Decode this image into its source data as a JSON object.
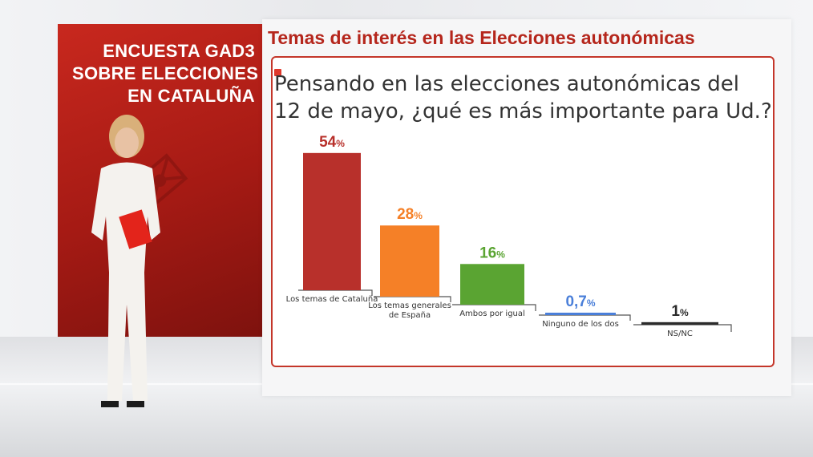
{
  "headline": {
    "lines": [
      "ENCUESTA GAD3",
      "SOBRE ELECCIONES",
      "EN CATALUÑA"
    ]
  },
  "screen": {
    "title": "Temas de interés en las Elecciones autonómicas",
    "question_lines": [
      "Pensando en las elecciones autonómicas del",
      "12 de mayo, ¿qué es más importante para Ud.?"
    ]
  },
  "colors": {
    "accent_red": "#c4362a",
    "panel_red": "#b5261c"
  },
  "chart_data": {
    "type": "bar",
    "title": "",
    "xlabel": "",
    "ylabel": "",
    "ylim": [
      0,
      60
    ],
    "unit": "%",
    "categories": [
      [
        "Los temas de Cataluña"
      ],
      [
        "Los temas generales",
        "de España"
      ],
      [
        "Ambos por igual"
      ],
      [
        "Ninguno de los dos"
      ],
      [
        "NS/NC"
      ]
    ],
    "values": [
      54,
      28,
      16,
      0.7,
      1
    ],
    "value_labels": [
      "54",
      "28",
      "16",
      "0,7",
      "1"
    ],
    "bar_colors": [
      "#b8302b",
      "#f58027",
      "#5aa432",
      "#4a7fd9",
      "#2b2b2b"
    ],
    "label_colors": [
      "#b8302b",
      "#f58027",
      "#5aa432",
      "#4a7fd9",
      "#2b2b2b"
    ]
  }
}
